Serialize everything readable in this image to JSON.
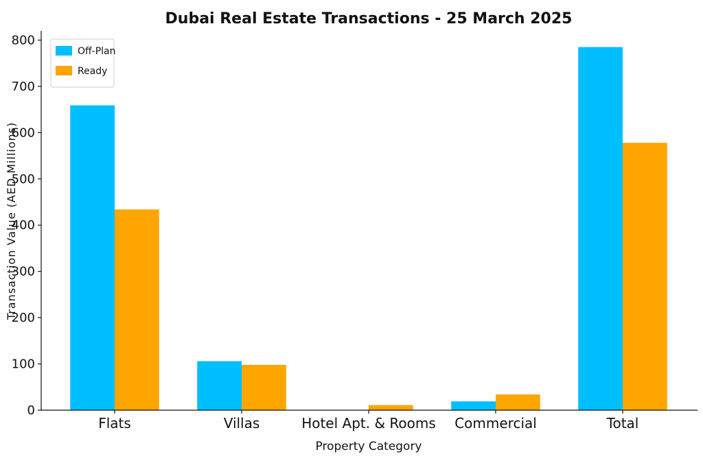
{
  "chart_data": {
    "type": "bar",
    "title": "Dubai Real Estate Transactions - 25 March 2025",
    "xlabel": "Property Category",
    "ylabel": "Transaction Value (AED Millions)",
    "categories": [
      "Flats",
      "Villas",
      "Hotel Apt. & Rooms",
      "Commercial",
      "Total"
    ],
    "series": [
      {
        "name": "Off-Plan",
        "color": "#00BFFF",
        "values": [
          659,
          106,
          0,
          19,
          785
        ]
      },
      {
        "name": "Ready",
        "color": "#FFA500",
        "values": [
          434,
          98,
          11,
          34,
          578
        ]
      }
    ],
    "ylim": [
      0,
      820
    ],
    "yticks": [
      0,
      100,
      200,
      300,
      400,
      500,
      600,
      700,
      800
    ],
    "grid": false,
    "legend_position": "top-left"
  }
}
